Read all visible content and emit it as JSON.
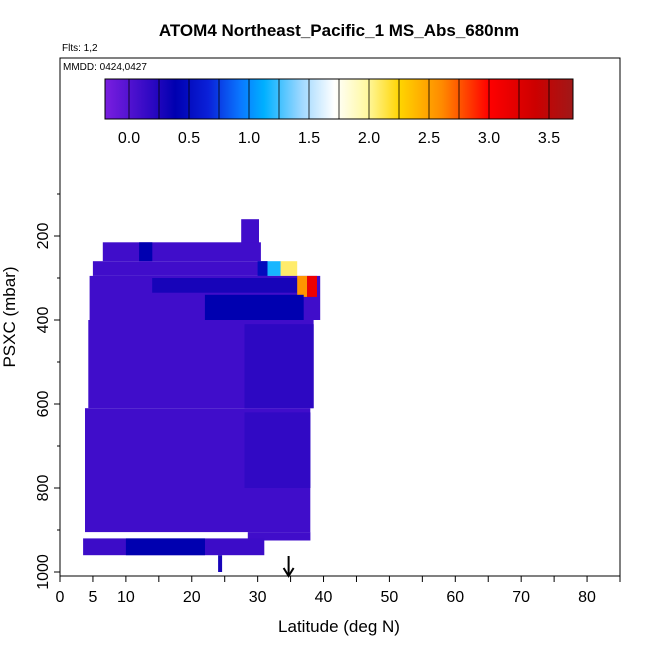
{
  "chart_data": {
    "type": "heatmap",
    "title": "ATOM4 Northeast_Pacific_1 MS_Abs_680nm",
    "flights_label": "Flts: 1,2",
    "dates_label": "MMDD: 0424,0427",
    "xlabel": "Latitude (deg N)",
    "ylabel": "PSXC (mbar)",
    "xlim": [
      0,
      85
    ],
    "ylim": [
      1000,
      0
    ],
    "x_ticks": [
      0,
      5,
      10,
      20,
      30,
      40,
      50,
      60,
      70,
      80
    ],
    "y_ticks": [
      200,
      400,
      600,
      800,
      1000
    ],
    "colorbar": {
      "range": [
        -0.2,
        3.7
      ],
      "ticks": [
        "0.0",
        "0.5",
        "1.0",
        "1.5",
        "2.0",
        "2.5",
        "3.0",
        "3.5"
      ],
      "tick_values": [
        0.0,
        0.5,
        1.0,
        1.5,
        2.0,
        2.5,
        3.0,
        3.5
      ]
    },
    "marker_arrow_latitude": 34.7,
    "grid": false,
    "background_color": "#7a1ee0",
    "cells": [
      {
        "x": [
          27.5,
          30.2
        ],
        "y": [
          160,
          220
        ],
        "v": 0.1
      },
      {
        "x": [
          6.5,
          30.5
        ],
        "y": [
          215,
          260
        ],
        "v": 0.1
      },
      {
        "x": [
          12.0,
          14.0
        ],
        "y": [
          215,
          260
        ],
        "v": 0.4
      },
      {
        "x": [
          5.0,
          31.5
        ],
        "y": [
          260,
          295
        ],
        "v": 0.1
      },
      {
        "x": [
          31.5,
          33.5
        ],
        "y": [
          260,
          295
        ],
        "v": 1.3
      },
      {
        "x": [
          33.5,
          36.0
        ],
        "y": [
          260,
          295
        ],
        "v": 2.3
      },
      {
        "x": [
          30.0,
          31.5
        ],
        "y": [
          260,
          295
        ],
        "v": 0.5
      },
      {
        "x": [
          4.5,
          39.5
        ],
        "y": [
          295,
          400
        ],
        "v": 0.1
      },
      {
        "x": [
          14.0,
          36.0
        ],
        "y": [
          300,
          335
        ],
        "v": 0.3
      },
      {
        "x": [
          36.0,
          37.5
        ],
        "y": [
          295,
          345
        ],
        "v": 2.8
      },
      {
        "x": [
          37.5,
          39.0
        ],
        "y": [
          295,
          345
        ],
        "v": 3.3
      },
      {
        "x": [
          22.0,
          37.0
        ],
        "y": [
          340,
          400
        ],
        "v": 0.4
      },
      {
        "x": [
          4.3,
          38.5
        ],
        "y": [
          400,
          610
        ],
        "v": 0.1
      },
      {
        "x": [
          28.0,
          38.5
        ],
        "y": [
          410,
          610
        ],
        "v": 0.2
      },
      {
        "x": [
          3.8,
          38.0
        ],
        "y": [
          610,
          905
        ],
        "v": 0.1
      },
      {
        "x": [
          28.0,
          38.0
        ],
        "y": [
          620,
          800
        ],
        "v": 0.18
      },
      {
        "x": [
          28.5,
          38.0
        ],
        "y": [
          905,
          925
        ],
        "v": 0.1
      },
      {
        "x": [
          3.5,
          31.0
        ],
        "y": [
          920,
          960
        ],
        "v": 0.12
      },
      {
        "x": [
          10.0,
          22.0
        ],
        "y": [
          920,
          960
        ],
        "v": 0.4
      },
      {
        "x": [
          24.0,
          24.6
        ],
        "y": [
          960,
          1000
        ],
        "v": 0.3
      }
    ]
  }
}
